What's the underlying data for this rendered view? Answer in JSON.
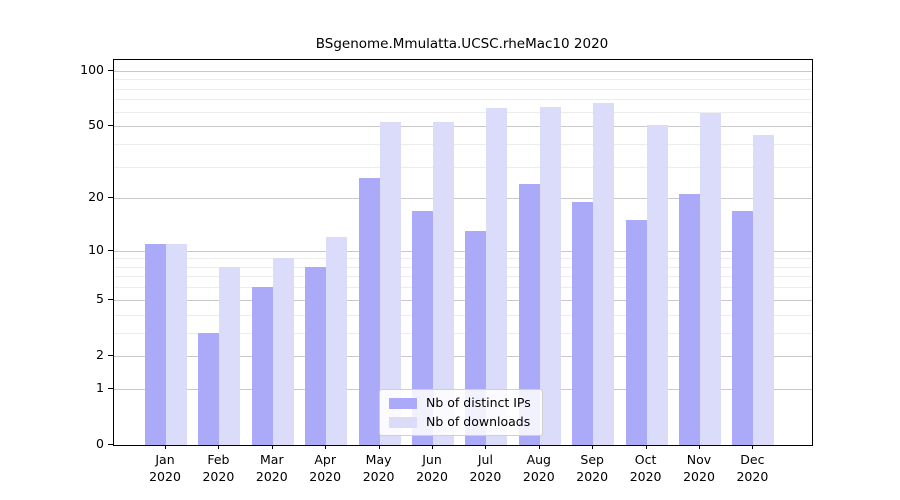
{
  "chart_data": {
    "type": "bar",
    "title": "BSgenome.Mmulatta.UCSC.rheMac10 2020",
    "categories": [
      "Jan",
      "Feb",
      "Mar",
      "Apr",
      "May",
      "Jun",
      "Jul",
      "Aug",
      "Sep",
      "Oct",
      "Nov",
      "Dec"
    ],
    "x_sublabel": "2020",
    "series": [
      {
        "name": "Nb of distinct IPs",
        "color": "#aaaaf8",
        "values": [
          11,
          3,
          6,
          8,
          26,
          17,
          13,
          24,
          19,
          15,
          21,
          17
        ]
      },
      {
        "name": "Nb of downloads",
        "color": "#dbdbfa",
        "values": [
          11,
          8,
          9,
          12,
          53,
          53,
          63,
          64,
          67,
          51,
          59,
          45
        ]
      }
    ],
    "y_scale": "log1p",
    "ylim": [
      0,
      100
    ],
    "y_ticks": [
      0,
      1,
      2,
      5,
      10,
      20,
      50,
      100
    ],
    "y_minor_ticks": [
      3,
      4,
      6,
      7,
      8,
      9,
      30,
      40,
      60,
      70,
      80,
      90
    ],
    "grid": "on",
    "legend_position": "inside-bottom-center"
  },
  "colors": {
    "bar_distinct_ips": "#aaaaf8",
    "bar_downloads": "#dbdbfa",
    "grid_major": "#c9c9c9",
    "grid_minor": "#ececec",
    "axis": "#000000",
    "background": "#ffffff"
  }
}
